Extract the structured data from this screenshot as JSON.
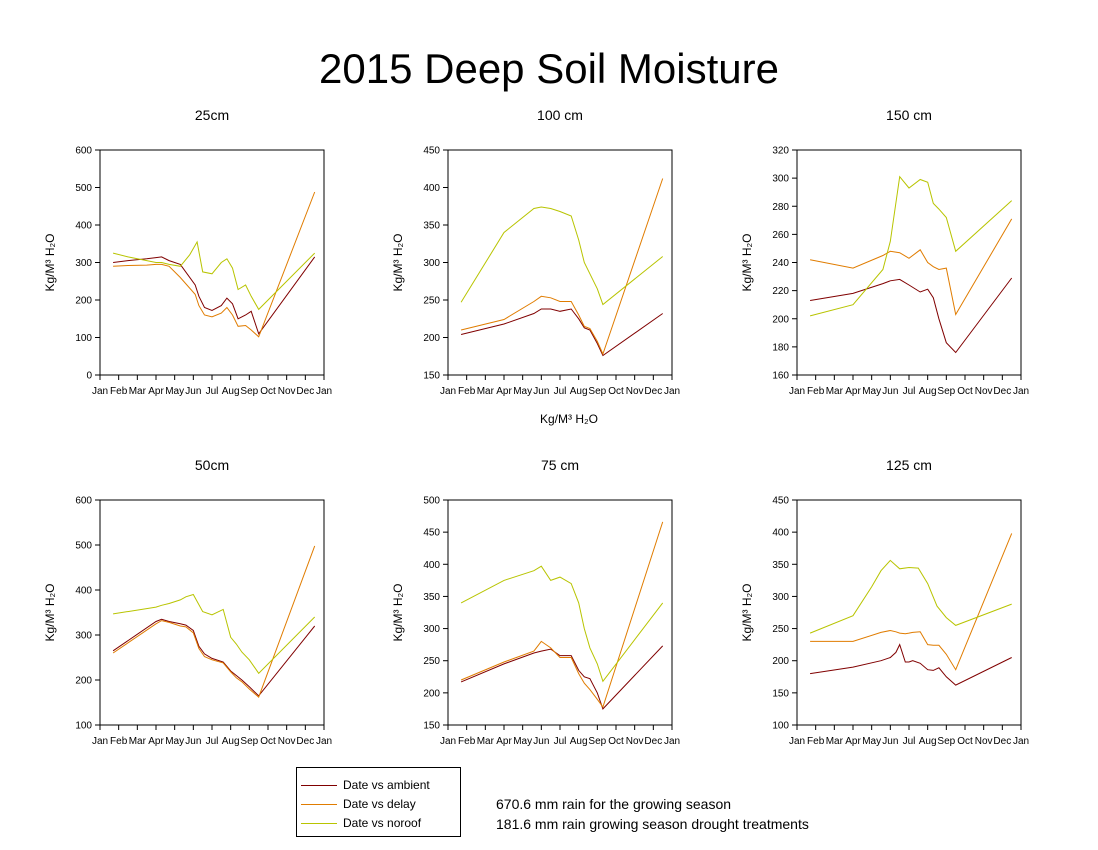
{
  "title": "2015 Deep Soil Moisture",
  "shared_xlabel": "Kg/M³ H₂O",
  "legend": [
    {
      "label": "Date vs ambient",
      "color": "#800000"
    },
    {
      "label": "Date vs delay",
      "color": "#e07c00"
    },
    {
      "label": "Date vs noroof",
      "color": "#b8c400"
    }
  ],
  "notes": [
    "670.6 mm rain for the growing season",
    "181.6 mm rain growing season drought treatments"
  ],
  "chart_data": [
    {
      "type": "line",
      "title": "25cm",
      "ylabel": "Kg/M³ H₂O",
      "x_ticks": [
        "Jan",
        "Feb",
        "Mar",
        "Apr",
        "May",
        "Jun",
        "Jul",
        "Aug",
        "Sep",
        "Oct",
        "Nov",
        "Dec",
        "Jan"
      ],
      "ylim": [
        0,
        600
      ],
      "y_ticks": [
        0,
        100,
        200,
        300,
        400,
        500,
        600
      ],
      "series": [
        {
          "name": "Date vs ambient",
          "x": [
            0.7,
            1.5,
            2.5,
            3.0,
            3.3,
            3.7,
            4.3,
            5.1,
            5.3,
            5.6,
            6.0,
            6.5,
            6.8,
            7.1,
            7.4,
            7.8,
            8.1,
            8.5,
            11.5
          ],
          "y": [
            300,
            305,
            310,
            313,
            315,
            305,
            295,
            240,
            210,
            180,
            172,
            185,
            205,
            190,
            150,
            160,
            170,
            110,
            315
          ]
        },
        {
          "name": "Date vs delay",
          "x": [
            0.7,
            1.5,
            2.5,
            3.0,
            3.3,
            3.7,
            4.3,
            5.1,
            5.3,
            5.6,
            6.0,
            6.5,
            6.8,
            7.1,
            7.4,
            7.8,
            8.1,
            8.5,
            11.5
          ],
          "y": [
            290,
            292,
            293,
            295,
            295,
            290,
            260,
            215,
            185,
            160,
            155,
            165,
            180,
            160,
            130,
            132,
            120,
            102,
            488
          ]
        },
        {
          "name": "Date vs noroof",
          "x": [
            0.7,
            1.5,
            2.5,
            3.0,
            3.3,
            3.7,
            4.3,
            4.8,
            5.2,
            5.5,
            6.0,
            6.5,
            6.8,
            7.1,
            7.4,
            7.8,
            8.1,
            8.5,
            11.5
          ],
          "y": [
            325,
            315,
            305,
            300,
            300,
            295,
            290,
            320,
            355,
            275,
            270,
            300,
            310,
            285,
            228,
            240,
            210,
            175,
            325
          ]
        }
      ]
    },
    {
      "type": "line",
      "title": "100 cm",
      "ylabel": "Kg/M³ H₂O",
      "x_ticks": [
        "Jan",
        "Feb",
        "Mar",
        "Apr",
        "May",
        "Jun",
        "Jul",
        "Aug",
        "Sep",
        "Oct",
        "Nov",
        "Dec",
        "Jan"
      ],
      "ylim": [
        150,
        450
      ],
      "y_ticks": [
        150,
        200,
        250,
        300,
        350,
        400,
        450
      ],
      "series": [
        {
          "name": "Date vs ambient",
          "x": [
            0.7,
            3.0,
            4.6,
            5.0,
            5.5,
            6.0,
            6.6,
            7.0,
            7.3,
            7.6,
            8.0,
            8.3,
            11.5
          ],
          "y": [
            204,
            218,
            232,
            238,
            238,
            235,
            238,
            225,
            213,
            210,
            192,
            176,
            232
          ]
        },
        {
          "name": "Date vs delay",
          "x": [
            0.7,
            3.0,
            4.6,
            5.0,
            5.5,
            6.0,
            6.6,
            7.0,
            7.3,
            7.6,
            8.0,
            8.3,
            11.5
          ],
          "y": [
            210,
            224,
            248,
            255,
            253,
            248,
            248,
            230,
            215,
            212,
            195,
            178,
            412
          ]
        },
        {
          "name": "Date vs noroof",
          "x": [
            0.7,
            3.0,
            4.6,
            5.0,
            5.5,
            6.0,
            6.6,
            7.0,
            7.3,
            7.6,
            8.0,
            8.3,
            11.5
          ],
          "y": [
            247,
            340,
            372,
            374,
            372,
            368,
            362,
            330,
            300,
            285,
            265,
            244,
            308
          ]
        }
      ]
    },
    {
      "type": "line",
      "title": "150 cm",
      "ylabel": "Kg/M³ H₂O",
      "x_ticks": [
        "Jan",
        "Feb",
        "Mar",
        "Apr",
        "May",
        "Jun",
        "Jul",
        "Aug",
        "Sep",
        "Oct",
        "Nov",
        "Dec",
        "Jan"
      ],
      "ylim": [
        160,
        320
      ],
      "y_ticks": [
        160,
        180,
        200,
        220,
        240,
        260,
        280,
        300,
        320
      ],
      "series": [
        {
          "name": "Date vs ambient",
          "x": [
            0.7,
            3.0,
            4.6,
            5.0,
            5.5,
            6.0,
            6.6,
            7.0,
            7.3,
            7.6,
            8.0,
            8.5,
            11.5
          ],
          "y": [
            213,
            218,
            225,
            227,
            228,
            224,
            219,
            221,
            215,
            200,
            183,
            176,
            229
          ]
        },
        {
          "name": "Date vs delay",
          "x": [
            0.7,
            3.0,
            4.6,
            5.0,
            5.5,
            6.0,
            6.6,
            7.0,
            7.3,
            7.6,
            8.0,
            8.5,
            11.5
          ],
          "y": [
            242,
            236,
            245,
            248,
            247,
            243,
            249,
            240,
            237,
            235,
            236,
            203,
            271
          ]
        },
        {
          "name": "Date vs noroof",
          "x": [
            0.7,
            3.0,
            4.6,
            5.0,
            5.5,
            6.0,
            6.6,
            7.0,
            7.3,
            7.6,
            8.0,
            8.5,
            11.5
          ],
          "y": [
            202,
            210,
            235,
            255,
            301,
            293,
            299,
            297,
            282,
            278,
            272,
            248,
            284
          ]
        }
      ]
    },
    {
      "type": "line",
      "title": "50cm",
      "ylabel": "Kg/M³ H₂O",
      "x_ticks": [
        "Jan",
        "Feb",
        "Mar",
        "Apr",
        "May",
        "Jun",
        "Jul",
        "Aug",
        "Sep",
        "Oct",
        "Nov",
        "Dec",
        "Jan"
      ],
      "ylim": [
        100,
        600
      ],
      "y_ticks": [
        100,
        200,
        300,
        400,
        500,
        600
      ],
      "series": [
        {
          "name": "Date vs ambient",
          "x": [
            0.7,
            3.0,
            3.3,
            3.7,
            4.3,
            4.6,
            5.0,
            5.3,
            5.6,
            6.0,
            6.6,
            7.0,
            7.3,
            7.6,
            8.0,
            8.5,
            11.5
          ],
          "y": [
            265,
            330,
            335,
            330,
            325,
            322,
            310,
            275,
            258,
            248,
            240,
            220,
            210,
            200,
            185,
            165,
            320
          ]
        },
        {
          "name": "Date vs delay",
          "x": [
            0.7,
            3.0,
            3.3,
            3.7,
            4.3,
            4.6,
            5.0,
            5.3,
            5.6,
            6.0,
            6.6,
            7.0,
            7.3,
            7.6,
            8.0,
            8.5,
            11.5
          ],
          "y": [
            260,
            325,
            332,
            328,
            320,
            318,
            305,
            270,
            252,
            245,
            238,
            218,
            205,
            196,
            180,
            162,
            498
          ]
        },
        {
          "name": "Date vs noroof",
          "x": [
            0.7,
            3.0,
            3.3,
            3.7,
            4.3,
            4.6,
            5.0,
            5.5,
            6.0,
            6.6,
            7.0,
            7.3,
            7.6,
            8.0,
            8.5,
            11.5
          ],
          "y": [
            347,
            362,
            366,
            370,
            378,
            385,
            390,
            352,
            345,
            357,
            295,
            280,
            262,
            245,
            215,
            340
          ]
        }
      ]
    },
    {
      "type": "line",
      "title": "75 cm",
      "ylabel": "Kg/M³ H₂O",
      "x_ticks": [
        "Jan",
        "Feb",
        "Mar",
        "Apr",
        "May",
        "Jun",
        "Jul",
        "Aug",
        "Sep",
        "Oct",
        "Nov",
        "Dec",
        "Jan"
      ],
      "ylim": [
        150,
        500
      ],
      "y_ticks": [
        150,
        200,
        250,
        300,
        350,
        400,
        450,
        500
      ],
      "series": [
        {
          "name": "Date vs ambient",
          "x": [
            0.7,
            3.0,
            4.6,
            5.0,
            5.5,
            6.0,
            6.6,
            7.0,
            7.3,
            7.6,
            8.0,
            8.3,
            11.5
          ],
          "y": [
            217,
            245,
            262,
            265,
            268,
            258,
            258,
            235,
            225,
            222,
            200,
            175,
            273
          ]
        },
        {
          "name": "Date vs delay",
          "x": [
            0.7,
            3.0,
            4.6,
            5.0,
            5.5,
            6.0,
            6.6,
            7.0,
            7.3,
            7.6,
            8.0,
            8.3,
            11.5
          ],
          "y": [
            220,
            248,
            265,
            280,
            270,
            255,
            255,
            230,
            215,
            205,
            190,
            178,
            466
          ]
        },
        {
          "name": "Date vs noroof",
          "x": [
            0.7,
            3.0,
            4.6,
            5.0,
            5.5,
            6.0,
            6.6,
            7.0,
            7.3,
            7.6,
            8.0,
            8.3,
            11.5
          ],
          "y": [
            340,
            375,
            390,
            397,
            375,
            380,
            370,
            340,
            300,
            270,
            245,
            218,
            340
          ]
        }
      ]
    },
    {
      "type": "line",
      "title": "125 cm",
      "ylabel": "Kg/M³ H₂O",
      "x_ticks": [
        "Jan",
        "Feb",
        "Mar",
        "Apr",
        "May",
        "Jun",
        "Jul",
        "Aug",
        "Sep",
        "Oct",
        "Nov",
        "Dec",
        "Jan"
      ],
      "ylim": [
        100,
        450
      ],
      "y_ticks": [
        100,
        150,
        200,
        250,
        300,
        350,
        400,
        450
      ],
      "series": [
        {
          "name": "Date vs ambient",
          "x": [
            0.7,
            3.0,
            4.5,
            5.0,
            5.3,
            5.5,
            5.8,
            6.0,
            6.2,
            6.6,
            7.0,
            7.3,
            7.6,
            8.0,
            8.5,
            11.5
          ],
          "y": [
            180,
            190,
            200,
            205,
            213,
            225,
            198,
            198,
            200,
            196,
            186,
            185,
            189,
            175,
            162,
            205
          ]
        },
        {
          "name": "Date vs delay",
          "x": [
            0.7,
            3.0,
            4.5,
            5.0,
            5.3,
            5.5,
            5.8,
            6.0,
            6.2,
            6.6,
            7.0,
            7.3,
            7.6,
            8.0,
            8.5,
            11.5
          ],
          "y": [
            230,
            230,
            244,
            247,
            245,
            243,
            242,
            243,
            244,
            245,
            225,
            224,
            224,
            210,
            186,
            398
          ]
        },
        {
          "name": "Date vs noroof",
          "x": [
            0.7,
            3.0,
            4.0,
            4.5,
            5.0,
            5.5,
            6.0,
            6.5,
            7.0,
            7.5,
            8.0,
            8.5,
            11.5
          ],
          "y": [
            243,
            270,
            315,
            340,
            356,
            343,
            345,
            344,
            320,
            285,
            267,
            255,
            288
          ]
        }
      ]
    }
  ]
}
